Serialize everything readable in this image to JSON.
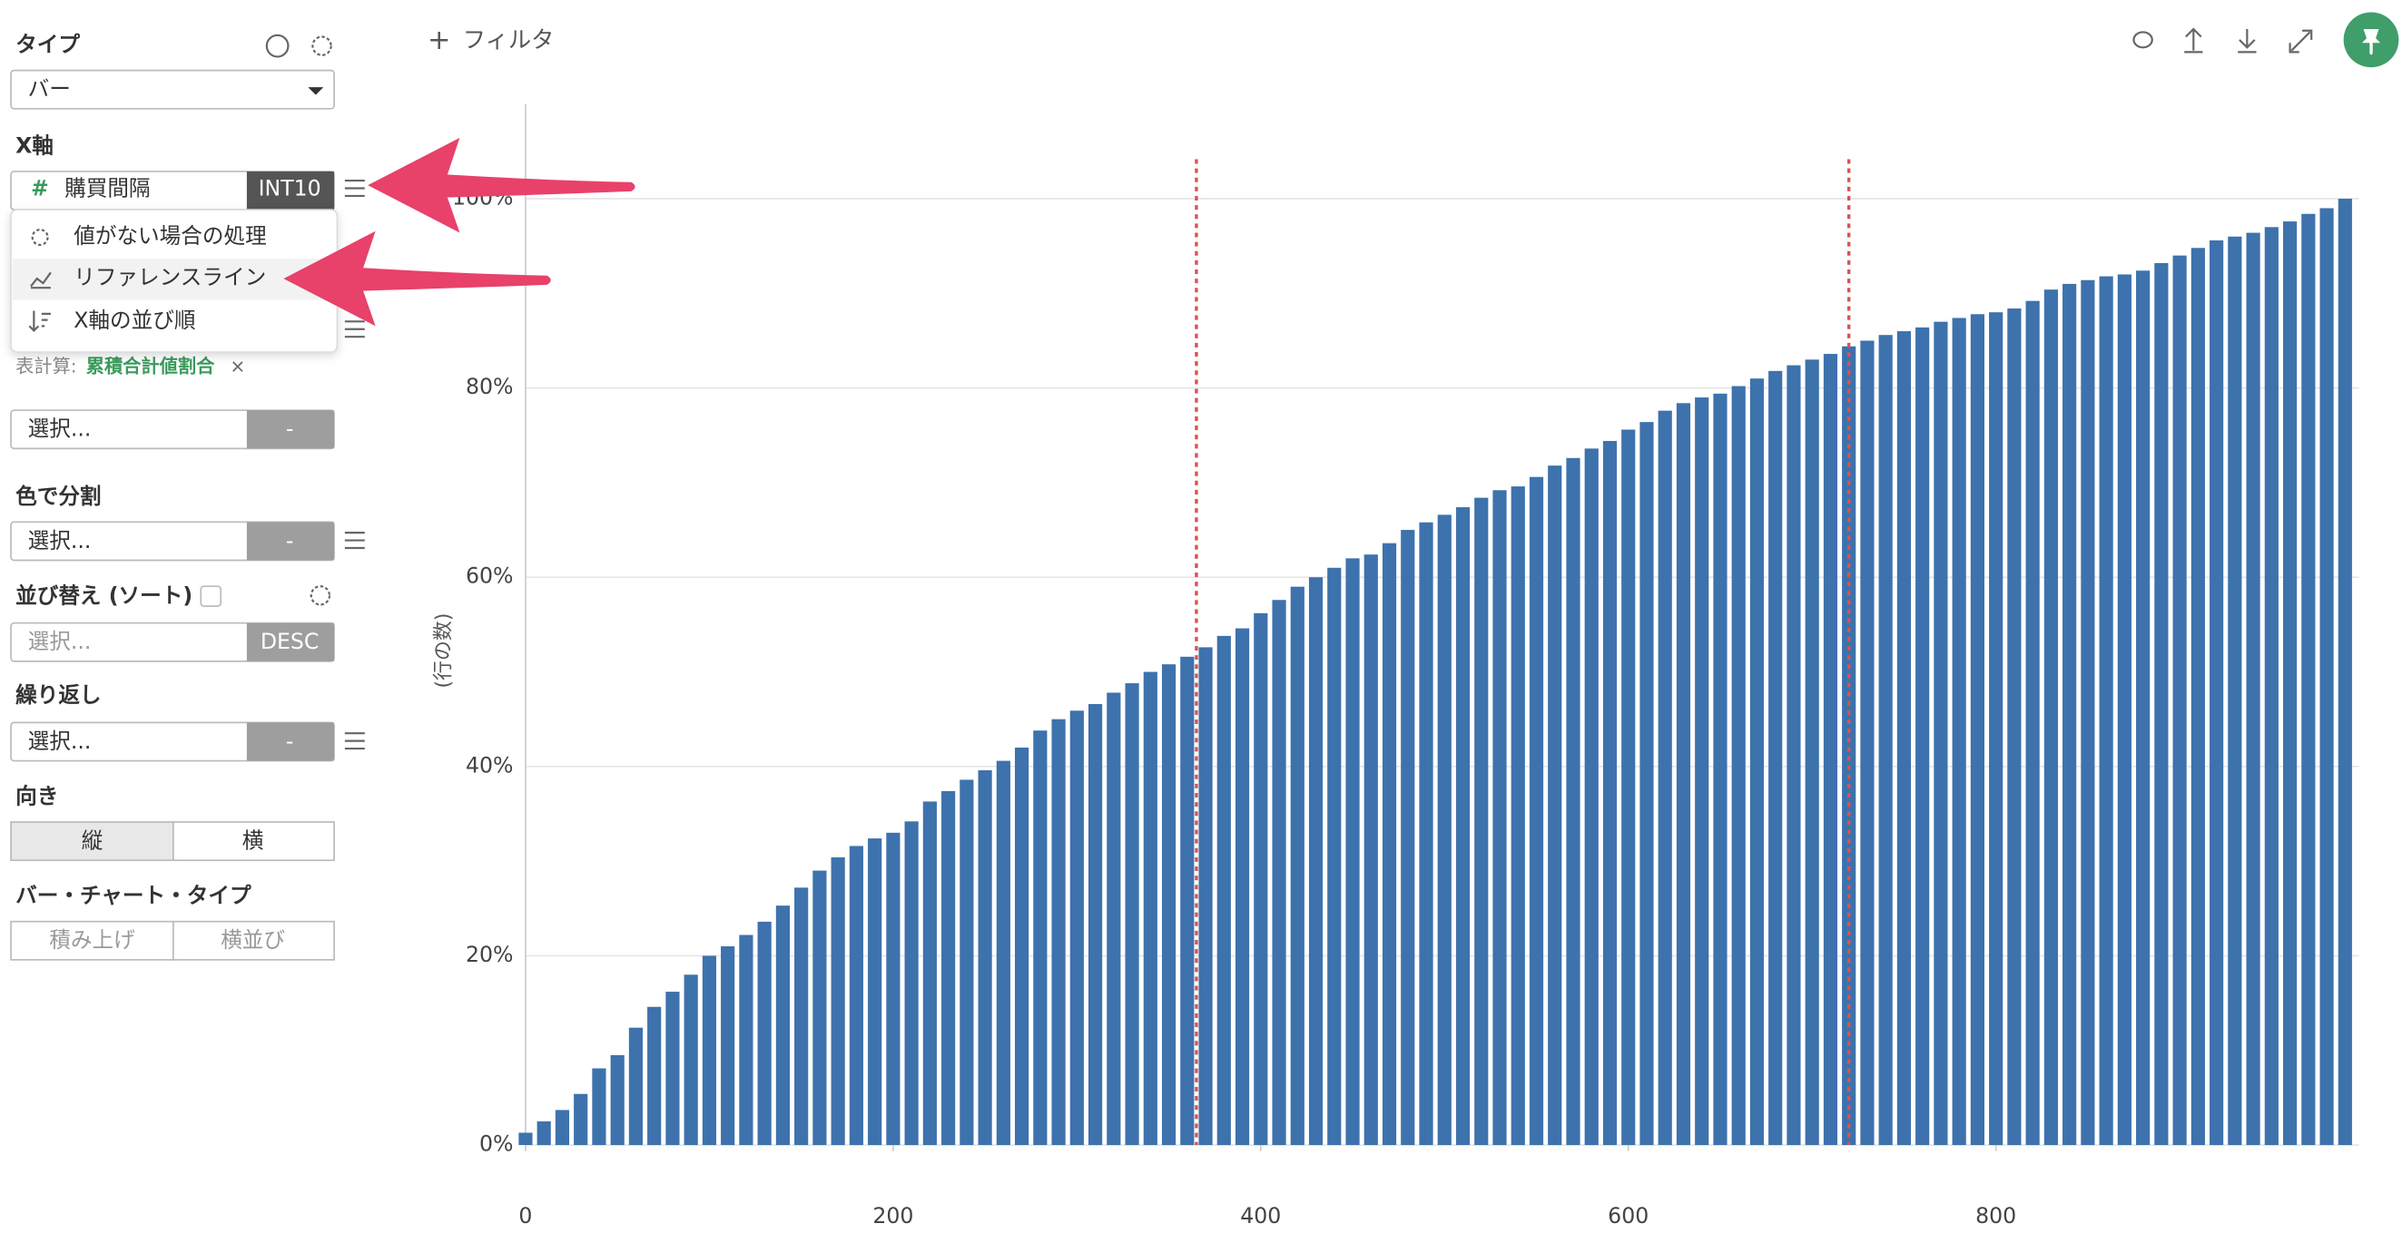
{
  "sidebar": {
    "type_label": "タイプ",
    "type_value": "バー",
    "xaxis_label": "X軸",
    "field_icon": "#",
    "field_name": "購買間隔",
    "field_badge": "INT10",
    "menu": [
      "値がない場合の処理",
      "リファレンスライン",
      "X軸の並び順"
    ],
    "calc_prefix": "表計算:",
    "calc_name": "累積合計値割合",
    "calc_close": "×",
    "y_select": "選択...",
    "y_button": "-",
    "color_label": "色で分割",
    "color_select": "選択...",
    "color_button": "-",
    "sort_label": "並び替え (ソート)",
    "sort_select": "選択...",
    "sort_button": "DESC",
    "repeat_label": "繰り返し",
    "repeat_select": "選択...",
    "repeat_button": "-",
    "orient_label": "向き",
    "orient_options": [
      "縦",
      "横"
    ],
    "bartype_label": "バー・チャート・タイプ",
    "bartype_options": [
      "積み上げ",
      "横並び"
    ]
  },
  "toolbar": {
    "filter_icon": "+",
    "filter_label": "フィルタ"
  },
  "chart_data": {
    "type": "bar",
    "y_label": "(行の数)",
    "color": "#3d72ad",
    "x": [
      0,
      10,
      20,
      30,
      40,
      50,
      60,
      70,
      80,
      90,
      100,
      110,
      120,
      130,
      140,
      150,
      160,
      170,
      180,
      190,
      200,
      210,
      220,
      230,
      240,
      250,
      260,
      270,
      280,
      290,
      300,
      310,
      320,
      330,
      340,
      350,
      360,
      370,
      380,
      390,
      400,
      410,
      420,
      430,
      440,
      450,
      460,
      470,
      480,
      490,
      500,
      510,
      520,
      530,
      540,
      550,
      560,
      570,
      580,
      590,
      600,
      610,
      620,
      630,
      640,
      650,
      660,
      670,
      680,
      690,
      700,
      710,
      720,
      730,
      740,
      750,
      760,
      770,
      780,
      790,
      800,
      810,
      820,
      830,
      840,
      850,
      860,
      870,
      880,
      890,
      900,
      910,
      920,
      930,
      940,
      950,
      960,
      970,
      980,
      990
    ],
    "values": [
      1.3,
      2.5,
      3.7,
      5.4,
      8.1,
      9.5,
      12.4,
      14.6,
      16.2,
      18.0,
      20.0,
      21.0,
      22.2,
      23.6,
      25.3,
      27.2,
      29.0,
      30.4,
      31.6,
      32.4,
      33.0,
      34.2,
      36.3,
      37.4,
      38.6,
      39.6,
      40.6,
      42.0,
      43.8,
      45.0,
      45.9,
      46.6,
      47.8,
      48.8,
      50.0,
      50.8,
      51.6,
      52.6,
      53.8,
      54.6,
      56.2,
      57.6,
      59.0,
      60.0,
      61.0,
      62.0,
      62.4,
      63.6,
      65.0,
      65.8,
      66.6,
      67.4,
      68.4,
      69.2,
      69.6,
      70.6,
      71.8,
      72.6,
      73.6,
      74.4,
      75.6,
      76.4,
      77.6,
      78.4,
      79.0,
      79.4,
      80.2,
      81.0,
      81.8,
      82.4,
      83.0,
      83.6,
      84.4,
      85.0,
      85.6,
      86.0,
      86.4,
      87.0,
      87.4,
      87.8,
      88.0,
      88.4,
      89.2,
      90.4,
      91.0,
      91.4,
      91.8,
      92.0,
      92.4,
      93.2,
      94.0,
      94.8,
      95.6,
      96.0,
      96.4,
      97.0,
      97.6,
      98.4,
      99.0,
      100.0
    ],
    "xlim": [
      0,
      1000
    ],
    "xticks": [
      0,
      200,
      400,
      600,
      800
    ],
    "ylim": [
      0,
      110
    ],
    "yticks": [
      {
        "value": 0,
        "label": "0%"
      },
      {
        "value": 20,
        "label": "20%"
      },
      {
        "value": 40,
        "label": "40%"
      },
      {
        "value": 60,
        "label": "60%"
      },
      {
        "value": 80,
        "label": "80%"
      },
      {
        "value": 100,
        "label": "100%"
      }
    ],
    "grid": true,
    "reference_lines": [
      365,
      720
    ],
    "reference_line_color": "#d9534f"
  }
}
